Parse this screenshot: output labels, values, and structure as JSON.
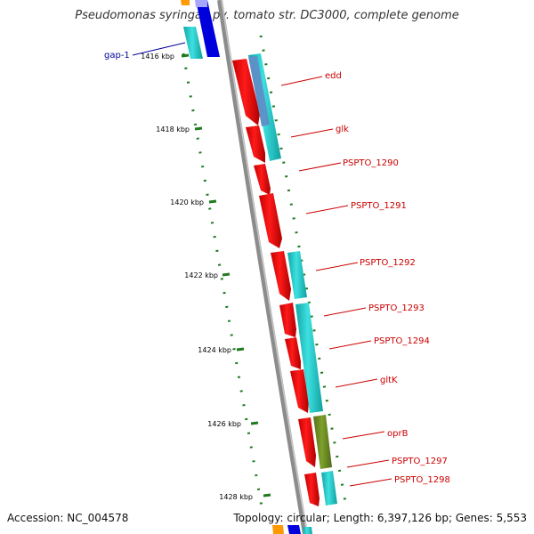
{
  "header": {
    "title": "Pseudomonas syringae pv. tomato str. DC3000, complete genome"
  },
  "footer": {
    "accession": "Accession: NC_004578",
    "summary": "Topology: circular; Length: 6,397,126 bp; Genes: 5,553"
  },
  "colors": {
    "backbone": "#8c8c8c",
    "cds_forward": "#ff0000",
    "gene_track": "#1fcfcf",
    "gene_track_alt": "#5e8fc8",
    "gene_track_olive": "#6e8f22",
    "gap": "#0000cc",
    "ticks": "#1f7a1f",
    "gene_label": "#cc0000",
    "gap_label": "#000099"
  },
  "ticks": [
    {
      "label": "1416 kbp"
    },
    {
      "label": "1418 kbp"
    },
    {
      "label": "1420 kbp"
    },
    {
      "label": "1422 kbp"
    },
    {
      "label": "1424 kbp"
    },
    {
      "label": "1426 kbp"
    },
    {
      "label": "1428 kbp"
    }
  ],
  "genes": [
    {
      "label": "edd"
    },
    {
      "label": "glk"
    },
    {
      "label": "PSPTO_1290"
    },
    {
      "label": "PSPTO_1291"
    },
    {
      "label": "PSPTO_1292"
    },
    {
      "label": "PSPTO_1293"
    },
    {
      "label": "PSPTO_1294"
    },
    {
      "label": "gltK"
    },
    {
      "label": "oprB"
    },
    {
      "label": "PSPTO_1297"
    },
    {
      "label": "PSPTO_1298"
    }
  ],
  "features": [
    {
      "label": "gap-1"
    }
  ]
}
